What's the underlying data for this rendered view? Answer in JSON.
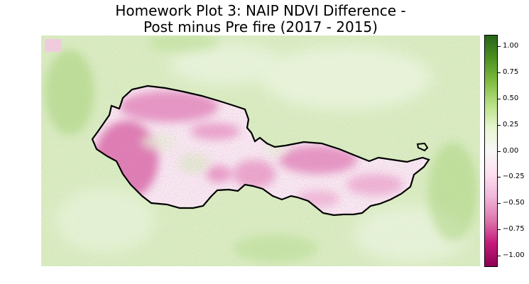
{
  "title_line1": "Homework Plot 3: NAIP NDVI Difference -",
  "title_line2": "Post minus Pre fire (2017 - 2015)",
  "colorbar": {
    "colormap": "PiYG",
    "min": -1.1,
    "max": 1.1,
    "ticks": [
      "1.00",
      "0.75",
      "0.50",
      "0.25",
      "0.00",
      "−0.25",
      "−0.50",
      "−0.75",
      "−1.00"
    ],
    "tick_values": [
      1.0,
      0.75,
      0.5,
      0.25,
      0.0,
      -0.25,
      -0.5,
      -0.75,
      -1.0
    ],
    "colors": [
      "#276419",
      "#4d9221",
      "#7fbc41",
      "#b8e186",
      "#e6f5d0",
      "#f7f7f7",
      "#fde0ef",
      "#f1b6da",
      "#de77ae",
      "#c51b7d",
      "#8e0152"
    ]
  },
  "map": {
    "background": "light green speckled NDVI difference raster",
    "fire_boundary_color": "#000000"
  }
}
